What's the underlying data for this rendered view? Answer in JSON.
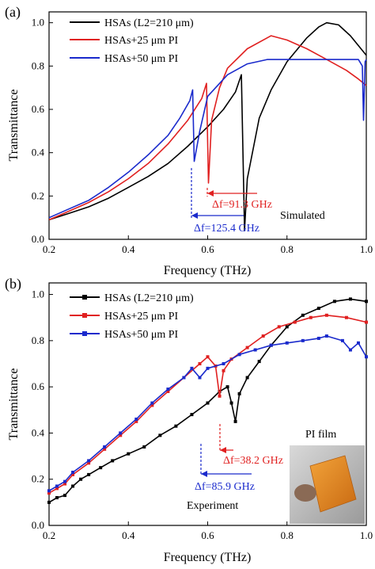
{
  "chart_data": [
    {
      "panel": "(a)",
      "type": "line",
      "xlabel": "Frequency (THz)",
      "ylabel": "Transmittance",
      "xlim": [
        0.2,
        1.0
      ],
      "ylim": [
        0.0,
        1.05
      ],
      "xticks": [
        "0.2",
        "0.4",
        "0.6",
        "0.8",
        "1.0"
      ],
      "yticks": [
        "0.0",
        "0.2",
        "0.4",
        "0.6",
        "0.8",
        "1.0"
      ],
      "grid": false,
      "legend_position": "top-left",
      "annotations": [
        "Simulated",
        "Δf=91.3 GHz",
        "Δf=125.4 GHz"
      ],
      "series": [
        {
          "name": "HSAs (L2=210 μm)",
          "color": "#000000",
          "points": [
            [
              0.2,
              0.09
            ],
            [
              0.25,
              0.12
            ],
            [
              0.3,
              0.15
            ],
            [
              0.35,
              0.19
            ],
            [
              0.4,
              0.24
            ],
            [
              0.45,
              0.29
            ],
            [
              0.5,
              0.35
            ],
            [
              0.55,
              0.43
            ],
            [
              0.6,
              0.52
            ],
            [
              0.64,
              0.6
            ],
            [
              0.67,
              0.68
            ],
            [
              0.685,
              0.76
            ],
            [
              0.693,
              0.04
            ],
            [
              0.7,
              0.28
            ],
            [
              0.73,
              0.56
            ],
            [
              0.76,
              0.69
            ],
            [
              0.8,
              0.82
            ],
            [
              0.85,
              0.93
            ],
            [
              0.88,
              0.98
            ],
            [
              0.9,
              1.0
            ],
            [
              0.93,
              0.99
            ],
            [
              0.96,
              0.94
            ],
            [
              1.0,
              0.85
            ]
          ]
        },
        {
          "name": "HSAs+25 μm PI",
          "color": "#e02020",
          "points": [
            [
              0.2,
              0.09
            ],
            [
              0.25,
              0.13
            ],
            [
              0.3,
              0.17
            ],
            [
              0.35,
              0.22
            ],
            [
              0.4,
              0.28
            ],
            [
              0.45,
              0.35
            ],
            [
              0.5,
              0.44
            ],
            [
              0.55,
              0.55
            ],
            [
              0.585,
              0.65
            ],
            [
              0.597,
              0.72
            ],
            [
              0.602,
              0.26
            ],
            [
              0.61,
              0.55
            ],
            [
              0.63,
              0.7
            ],
            [
              0.65,
              0.79
            ],
            [
              0.7,
              0.88
            ],
            [
              0.76,
              0.94
            ],
            [
              0.8,
              0.92
            ],
            [
              0.85,
              0.88
            ],
            [
              0.9,
              0.83
            ],
            [
              0.95,
              0.78
            ],
            [
              0.98,
              0.74
            ],
            [
              1.0,
              0.71
            ]
          ]
        },
        {
          "name": "HSAs+50 μm PI",
          "color": "#1a2acc",
          "points": [
            [
              0.2,
              0.1
            ],
            [
              0.25,
              0.14
            ],
            [
              0.3,
              0.18
            ],
            [
              0.35,
              0.24
            ],
            [
              0.4,
              0.31
            ],
            [
              0.45,
              0.39
            ],
            [
              0.5,
              0.48
            ],
            [
              0.53,
              0.56
            ],
            [
              0.555,
              0.64
            ],
            [
              0.562,
              0.69
            ],
            [
              0.566,
              0.36
            ],
            [
              0.58,
              0.5
            ],
            [
              0.6,
              0.66
            ],
            [
              0.65,
              0.76
            ],
            [
              0.7,
              0.81
            ],
            [
              0.75,
              0.83
            ],
            [
              0.8,
              0.83
            ],
            [
              0.85,
              0.83
            ],
            [
              0.9,
              0.83
            ],
            [
              0.95,
              0.83
            ],
            [
              0.98,
              0.83
            ],
            [
              0.99,
              0.8
            ],
            [
              0.993,
              0.55
            ],
            [
              0.997,
              0.82
            ],
            [
              1.0,
              0.83
            ]
          ]
        }
      ]
    },
    {
      "panel": "(b)",
      "type": "line",
      "xlabel": "Frequency (THz)",
      "ylabel": "Transmittance",
      "xlim": [
        0.2,
        1.0
      ],
      "ylim": [
        0.0,
        1.05
      ],
      "xticks": [
        "0.2",
        "0.4",
        "0.6",
        "0.8",
        "1.0"
      ],
      "yticks": [
        "0.0",
        "0.2",
        "0.4",
        "0.6",
        "0.8",
        "1.0"
      ],
      "grid": false,
      "legend_position": "top-left",
      "annotations": [
        "Experiment",
        "PI film",
        "Δf=38.2 GHz",
        "Δf=85.9 GHz"
      ],
      "series": [
        {
          "name": "HSAs (L2=210 μm)",
          "color": "#000000",
          "points": [
            [
              0.2,
              0.1
            ],
            [
              0.22,
              0.12
            ],
            [
              0.24,
              0.13
            ],
            [
              0.26,
              0.17
            ],
            [
              0.28,
              0.2
            ],
            [
              0.3,
              0.22
            ],
            [
              0.33,
              0.25
            ],
            [
              0.36,
              0.28
            ],
            [
              0.4,
              0.31
            ],
            [
              0.44,
              0.34
            ],
            [
              0.48,
              0.39
            ],
            [
              0.52,
              0.43
            ],
            [
              0.56,
              0.48
            ],
            [
              0.6,
              0.53
            ],
            [
              0.63,
              0.58
            ],
            [
              0.65,
              0.6
            ],
            [
              0.66,
              0.53
            ],
            [
              0.67,
              0.45
            ],
            [
              0.68,
              0.57
            ],
            [
              0.7,
              0.64
            ],
            [
              0.73,
              0.71
            ],
            [
              0.76,
              0.78
            ],
            [
              0.8,
              0.86
            ],
            [
              0.84,
              0.91
            ],
            [
              0.88,
              0.94
            ],
            [
              0.92,
              0.97
            ],
            [
              0.96,
              0.98
            ],
            [
              1.0,
              0.97
            ]
          ]
        },
        {
          "name": "HSAs+25 μm PI",
          "color": "#e02020",
          "points": [
            [
              0.2,
              0.14
            ],
            [
              0.22,
              0.16
            ],
            [
              0.24,
              0.18
            ],
            [
              0.26,
              0.22
            ],
            [
              0.3,
              0.27
            ],
            [
              0.34,
              0.33
            ],
            [
              0.38,
              0.39
            ],
            [
              0.42,
              0.45
            ],
            [
              0.46,
              0.52
            ],
            [
              0.5,
              0.58
            ],
            [
              0.54,
              0.64
            ],
            [
              0.58,
              0.7
            ],
            [
              0.6,
              0.73
            ],
            [
              0.62,
              0.69
            ],
            [
              0.63,
              0.56
            ],
            [
              0.64,
              0.67
            ],
            [
              0.66,
              0.72
            ],
            [
              0.7,
              0.77
            ],
            [
              0.74,
              0.82
            ],
            [
              0.78,
              0.86
            ],
            [
              0.82,
              0.88
            ],
            [
              0.86,
              0.9
            ],
            [
              0.9,
              0.91
            ],
            [
              0.95,
              0.9
            ],
            [
              1.0,
              0.88
            ]
          ]
        },
        {
          "name": "HSAs+50 μm PI",
          "color": "#1a2acc",
          "points": [
            [
              0.2,
              0.15
            ],
            [
              0.22,
              0.17
            ],
            [
              0.24,
              0.19
            ],
            [
              0.26,
              0.23
            ],
            [
              0.3,
              0.28
            ],
            [
              0.34,
              0.34
            ],
            [
              0.38,
              0.4
            ],
            [
              0.42,
              0.46
            ],
            [
              0.46,
              0.53
            ],
            [
              0.5,
              0.59
            ],
            [
              0.54,
              0.64
            ],
            [
              0.56,
              0.68
            ],
            [
              0.58,
              0.64
            ],
            [
              0.6,
              0.68
            ],
            [
              0.64,
              0.7
            ],
            [
              0.68,
              0.74
            ],
            [
              0.72,
              0.76
            ],
            [
              0.76,
              0.78
            ],
            [
              0.8,
              0.79
            ],
            [
              0.84,
              0.8
            ],
            [
              0.88,
              0.81
            ],
            [
              0.9,
              0.82
            ],
            [
              0.94,
              0.8
            ],
            [
              0.96,
              0.76
            ],
            [
              0.98,
              0.79
            ],
            [
              1.0,
              0.73
            ]
          ]
        }
      ]
    }
  ]
}
